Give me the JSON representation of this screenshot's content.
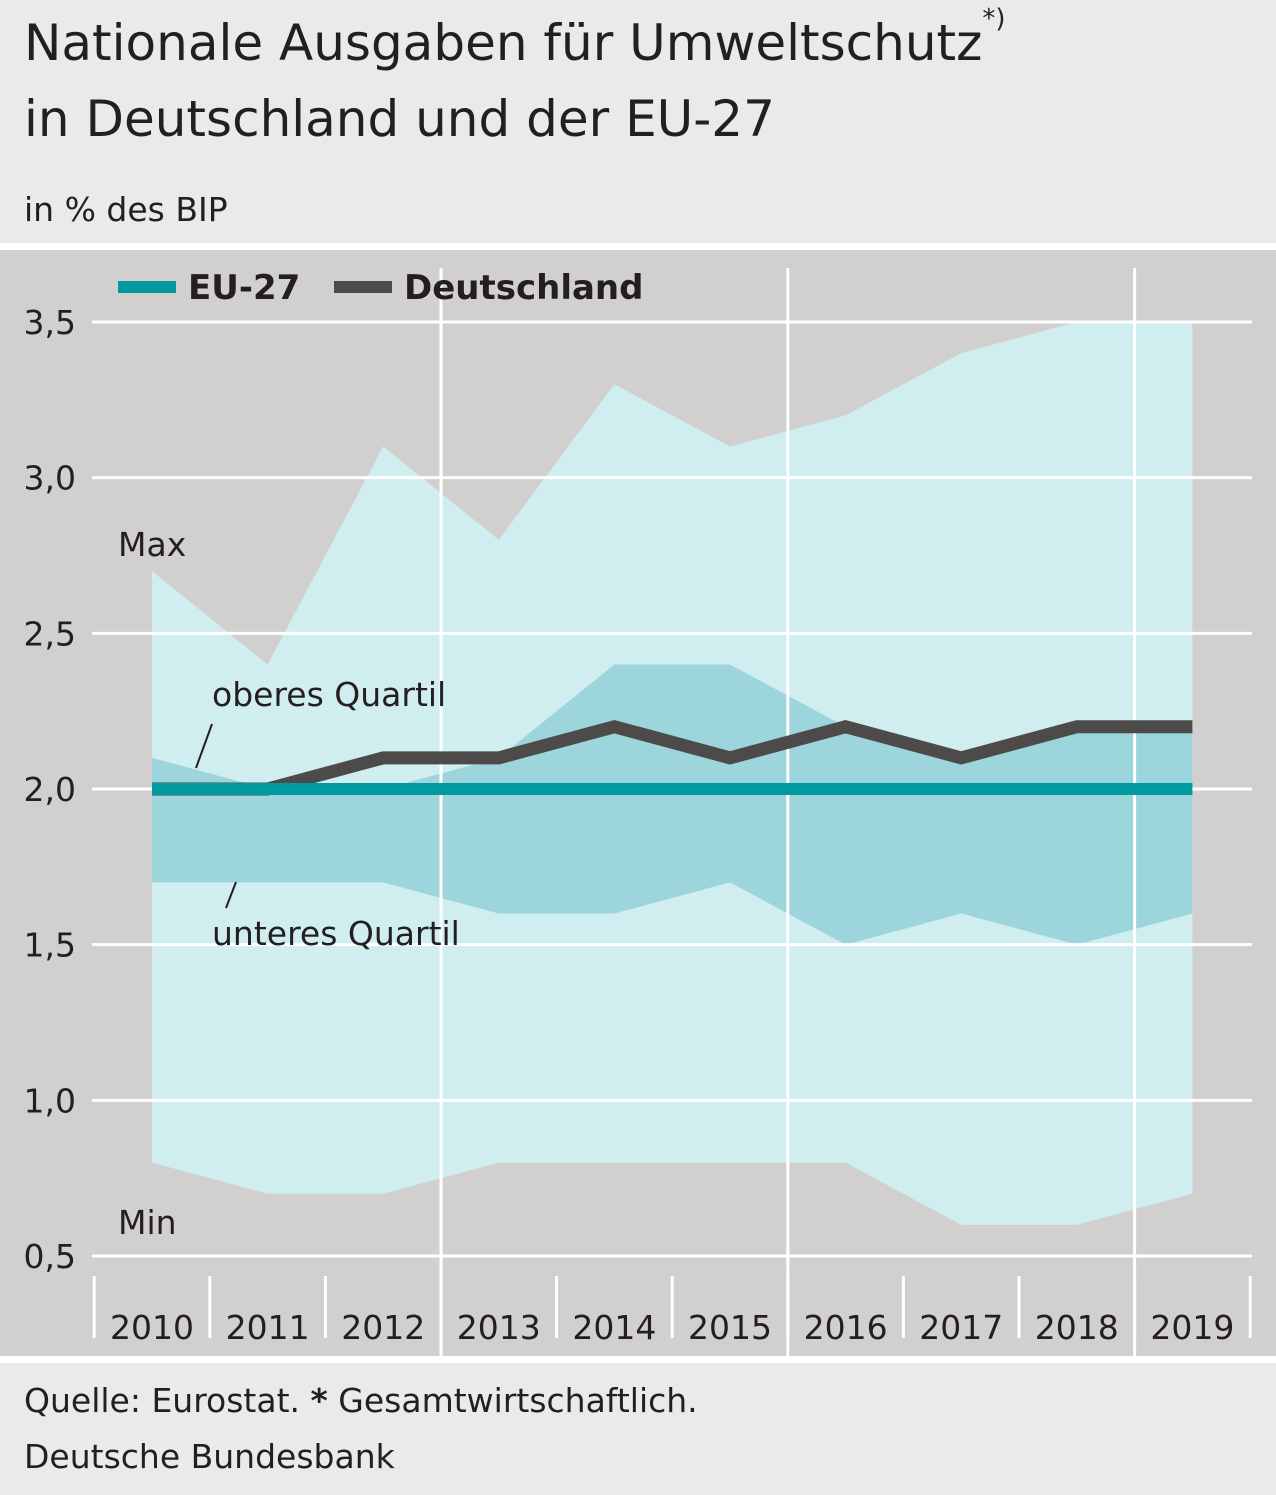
{
  "header": {
    "title_line1": "Nationale Ausgaben für Umweltschutz",
    "title_sup": "*)",
    "title_line2": "in Deutschland und der EU-27",
    "subtitle": "in % des BIP"
  },
  "footer": {
    "source_prefix": "Quelle: Eurostat.",
    "source_star": "*",
    "source_note": "Gesamtwirtschaftlich.",
    "publisher": "Deutsche Bundesbank"
  },
  "colors": {
    "plot_bg": "#d1d0cf",
    "range_band": "#d0edf0",
    "quartile_band": "#9dd5dc",
    "eu27": "#00999f",
    "deutschland": "#4d4b49",
    "grid": "#ffffff"
  },
  "chart_data": {
    "type": "line",
    "categories": [
      "2010",
      "2011",
      "2012",
      "2013",
      "2014",
      "2015",
      "2016",
      "2017",
      "2018",
      "2019"
    ],
    "ylim": [
      0.5,
      3.5
    ],
    "yticks": [
      "0,5",
      "1,0",
      "1,5",
      "2,0",
      "2,5",
      "3,0",
      "3,5"
    ],
    "ytick_values": [
      0.5,
      1.0,
      1.5,
      2.0,
      2.5,
      3.0,
      3.5
    ],
    "grid": true,
    "legend_position": "top-left",
    "series": [
      {
        "name": "EU-27",
        "values": [
          2.0,
          2.0,
          2.0,
          2.0,
          2.0,
          2.0,
          2.0,
          2.0,
          2.0,
          2.0
        ]
      },
      {
        "name": "Deutschland",
        "values": [
          2.0,
          2.0,
          2.1,
          2.1,
          2.2,
          2.1,
          2.2,
          2.1,
          2.2,
          2.2
        ]
      }
    ],
    "bands": [
      {
        "name": "Max / Min",
        "upper": [
          2.7,
          2.4,
          3.1,
          2.8,
          3.3,
          3.1,
          3.2,
          3.4,
          3.5,
          3.5
        ],
        "lower": [
          0.8,
          0.7,
          0.7,
          0.8,
          0.8,
          0.8,
          0.8,
          0.6,
          0.6,
          0.7
        ]
      },
      {
        "name": "oberes Quartil / unteres Quartil",
        "upper": [
          2.1,
          2.0,
          2.0,
          2.1,
          2.4,
          2.4,
          2.2,
          2.1,
          2.2,
          2.2
        ],
        "lower": [
          1.7,
          1.7,
          1.7,
          1.6,
          1.6,
          1.7,
          1.5,
          1.6,
          1.5,
          1.6
        ]
      }
    ],
    "annotations": {
      "max": "Max",
      "min": "Min",
      "upper_quartile": "oberes Quartil",
      "lower_quartile": "unteres Quartil"
    }
  }
}
